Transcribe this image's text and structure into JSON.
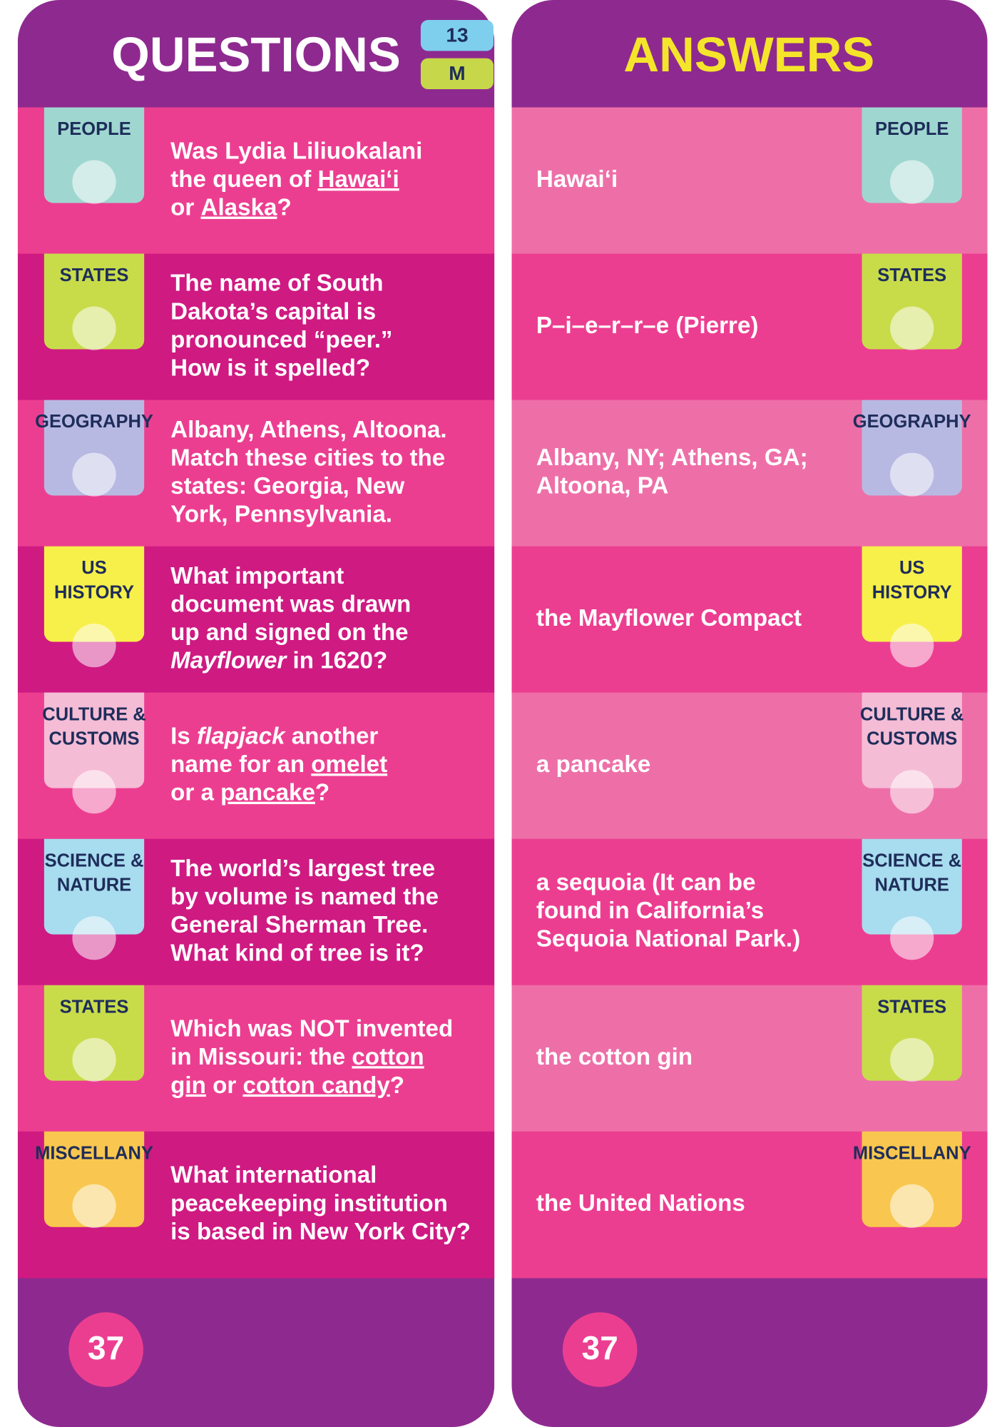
{
  "header": {
    "questions_title": "QUESTIONS",
    "badge_number": "13",
    "badge_level": "M",
    "answers_title": "ANSWERS"
  },
  "rows": [
    {
      "category": [
        "PEOPLE"
      ],
      "color": "#9fd7d0",
      "question": [
        [
          "Was Lydia Liliuokalani"
        ],
        [
          "the queen of ",
          {
            "text": "Hawai‘i",
            "underline": true
          }
        ],
        [
          "or ",
          {
            "text": "Alaska",
            "underline": true
          },
          "?"
        ]
      ],
      "answer": [
        "Hawai‘i"
      ]
    },
    {
      "category": [
        "STATES"
      ],
      "color": "#c8dc4a",
      "question": [
        [
          "The name of South"
        ],
        [
          "Dakota’s capital is"
        ],
        [
          "pronounced “peer.”"
        ],
        [
          "How is it spelled?"
        ]
      ],
      "answer": [
        "P–i–e–r–r–e (Pierre)"
      ]
    },
    {
      "category": [
        "GEOGRAPHY"
      ],
      "color": "#b8b9e2",
      "question": [
        [
          "Albany, Athens, Altoona."
        ],
        [
          "Match these cities to the"
        ],
        [
          "states: Georgia, New"
        ],
        [
          "York, Pennsylvania."
        ]
      ],
      "answer": [
        "Albany, NY; Athens, GA;",
        "Altoona, PA"
      ]
    },
    {
      "category": [
        "US",
        "HISTORY"
      ],
      "color": "#f7f04a",
      "question": [
        [
          "What important"
        ],
        [
          "document was drawn"
        ],
        [
          "up and signed on the"
        ],
        [
          {
            "text": "Mayflower",
            "italic": true
          },
          " in 1620?"
        ]
      ],
      "answer": [
        "the Mayflower Compact"
      ]
    },
    {
      "category": [
        "CULTURE &",
        "CUSTOMS"
      ],
      "color": "#f5bcd6",
      "question": [
        [
          "Is ",
          {
            "text": "flapjack",
            "italic": true
          },
          " another"
        ],
        [
          "name for an ",
          {
            "text": "omelet",
            "underline": true
          }
        ],
        [
          "or a ",
          {
            "text": "pancake",
            "underline": true
          },
          "?"
        ]
      ],
      "answer": [
        "a pancake"
      ]
    },
    {
      "category": [
        "SCIENCE &",
        "NATURE"
      ],
      "color": "#a8dcef",
      "question": [
        [
          "The world’s largest tree"
        ],
        [
          "by volume is named the"
        ],
        [
          "General Sherman Tree."
        ],
        [
          "What kind of tree is it?"
        ]
      ],
      "answer": [
        "a sequoia (It can be",
        "found in California’s",
        "Sequoia National Park.)"
      ]
    },
    {
      "category": [
        "STATES"
      ],
      "color": "#c8dc4a",
      "question": [
        [
          "Which was NOT invented"
        ],
        [
          "in Missouri: the ",
          {
            "text": "cotton",
            "underline": true
          }
        ],
        [
          {
            "text": "gin",
            "underline": true
          },
          " or ",
          {
            "text": "cotton candy",
            "underline": true
          },
          "?"
        ]
      ],
      "answer": [
        "the cotton gin"
      ]
    },
    {
      "category": [
        "MISCELLANY"
      ],
      "color": "#f9c74f",
      "question": [
        [
          "What international"
        ],
        [
          "peacekeeping institution"
        ],
        [
          "is based in New York City?"
        ]
      ],
      "answer": [
        "the United Nations"
      ]
    }
  ],
  "footer": {
    "left_page": "37",
    "right_page": "37"
  }
}
